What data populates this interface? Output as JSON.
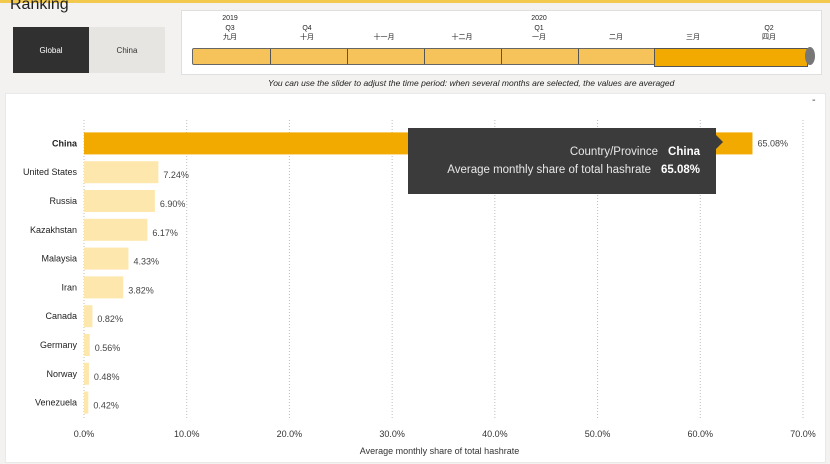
{
  "title": "Ranking",
  "region_toggle": {
    "global_label": "Global",
    "china_label": "China",
    "selected": "Global"
  },
  "timeline": {
    "year_labels": [
      {
        "text": "2019",
        "quarter": "Q3",
        "month": "九月"
      },
      {
        "text": "2020",
        "quarter": "Q1",
        "month": "一月"
      }
    ],
    "month_labels": [
      "九月",
      "十月",
      "十一月",
      "十二月",
      "一月",
      "二月",
      "三月",
      "四月"
    ],
    "quarter_labels": [
      "Q3",
      "Q4",
      "Q1",
      "Q2"
    ],
    "selected_month": "四月",
    "selected_quarter": "Q2"
  },
  "caption": "You can use the slider to adjust the time period: when several months are selected, the values are averaged",
  "tooltip": {
    "key1": "Country/Province",
    "val1": "China",
    "key2": "Average monthly share of total hashrate",
    "val2": "65.08%"
  },
  "colors": {
    "highlight": "#f2a900",
    "bar": "#fde7ad",
    "track": "#f6c35a",
    "dark": "#2f302f"
  },
  "chart_data": {
    "type": "bar",
    "orientation": "horizontal",
    "categories": [
      "China",
      "United States",
      "Russia",
      "Kazakhstan",
      "Malaysia",
      "Iran",
      "Canada",
      "Germany",
      "Norway",
      "Venezuela"
    ],
    "values": [
      65.08,
      7.24,
      6.9,
      6.17,
      4.33,
      3.82,
      0.82,
      0.56,
      0.48,
      0.42
    ],
    "value_labels": [
      "65.08%",
      "7.24%",
      "6.90%",
      "6.17%",
      "4.33%",
      "3.82%",
      "0.82%",
      "0.56%",
      "0.48%",
      "0.42%"
    ],
    "highlighted": "China",
    "xlabel": "Average monthly share of total hashrate",
    "xlim": [
      0,
      70
    ],
    "xticks": [
      "0.0%",
      "10.0%",
      "20.0%",
      "30.0%",
      "40.0%",
      "50.0%",
      "60.0%",
      "70.0%"
    ],
    "grid": true
  }
}
